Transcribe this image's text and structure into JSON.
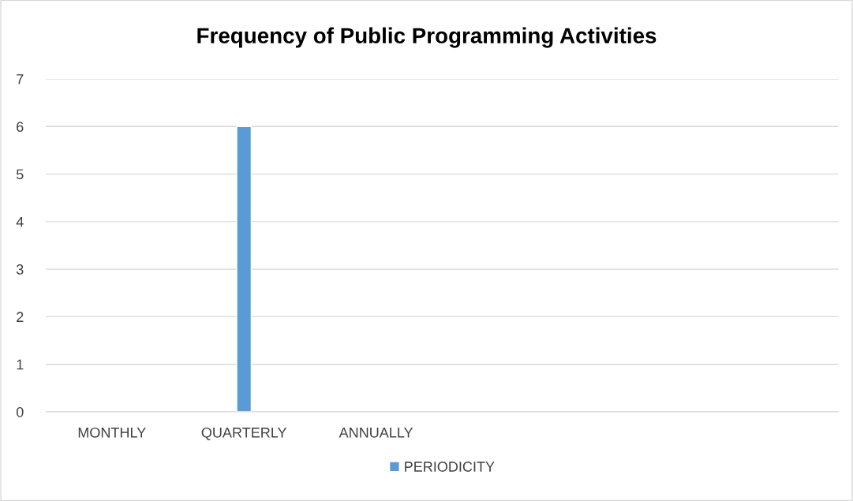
{
  "chart_data": {
    "type": "bar",
    "title": "Frequency of Public Programming Activities",
    "categories": [
      "MONTHLY",
      "QUARTERLY",
      "ANNUALLY",
      null,
      null,
      null
    ],
    "series": [
      {
        "name": "PERIODICITY",
        "color": "#5b9bd5",
        "values": [
          null,
          6,
          null,
          null,
          null,
          null
        ]
      }
    ],
    "ylim": [
      0,
      7
    ],
    "yticks": [
      0,
      1,
      2,
      3,
      4,
      5,
      6,
      7
    ],
    "grid": "y",
    "legend": "bottom"
  }
}
